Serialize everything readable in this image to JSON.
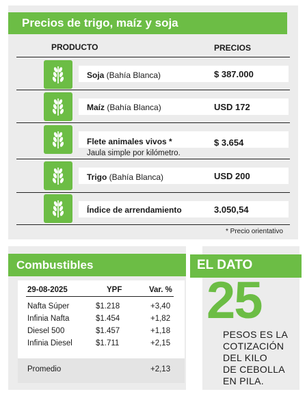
{
  "prices": {
    "title": "Precios de trigo, maíz y soja",
    "col_product": "PRODUCTO",
    "col_price": "PRECIOS",
    "rows": [
      {
        "name": "Soja",
        "place": " (Bahía Blanca)",
        "price": "$ 387.000"
      },
      {
        "name": "Maíz",
        "place": " (Bahía Blanca)",
        "price": "USD 172"
      },
      {
        "name": "Flete animales vivos *",
        "place": "",
        "sub": "Jaula simple por kilómetro.",
        "price": "$ 3.654"
      },
      {
        "name": "Trigo",
        "place": " (Bahía Blanca)",
        "price": "USD 200"
      },
      {
        "name": "Índice de arrendamiento",
        "place": "",
        "price": "3.050,54"
      }
    ],
    "footnote": "* Precio orientativo",
    "icon": "wheat-icon",
    "accent": "#6cbd45"
  },
  "fuel": {
    "title": "Combustibles",
    "headers": [
      "29-08-2025",
      "YPF",
      "Var. %"
    ],
    "rows": [
      [
        "Nafta Súper",
        "$1.218",
        "+3,40"
      ],
      [
        "Infinia Nafta",
        "$1.454",
        "+1,82"
      ],
      [
        "Diesel 500",
        "$1.457",
        "+1,18"
      ],
      [
        "Infinia Diesel",
        "$1.711",
        "+2,15"
      ]
    ],
    "average": [
      "Promedio",
      "+2,13"
    ]
  },
  "dato": {
    "title": "EL DATO",
    "number": "25",
    "lines": [
      "PESOS ES LA",
      "COTIZACIÓN",
      "DEL KILO",
      "DE CEBOLLA",
      "EN PILA."
    ]
  }
}
